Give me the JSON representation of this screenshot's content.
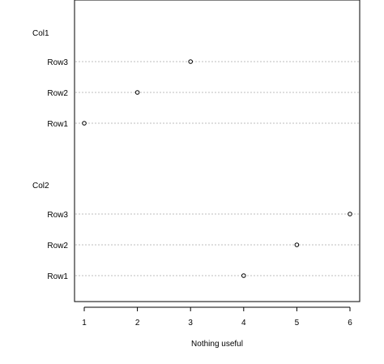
{
  "chart_data": {
    "type": "dotchart",
    "title": "",
    "xlabel": "Nothing useful",
    "ylabel": "",
    "xlim": [
      1,
      6
    ],
    "x_ticks": [
      1,
      2,
      3,
      4,
      5,
      6
    ],
    "grid": "dotted horizontal guide lines",
    "groups": [
      {
        "name": "Col1",
        "rows": [
          {
            "label": "Row3",
            "value": 3
          },
          {
            "label": "Row2",
            "value": 2
          },
          {
            "label": "Row1",
            "value": 1
          }
        ]
      },
      {
        "name": "Col2",
        "rows": [
          {
            "label": "Row3",
            "value": 6
          },
          {
            "label": "Row2",
            "value": 5
          },
          {
            "label": "Row1",
            "value": 4
          }
        ]
      }
    ],
    "colors": {
      "points": "#000000",
      "guides": "#bebebe",
      "frame": "#000000"
    }
  }
}
